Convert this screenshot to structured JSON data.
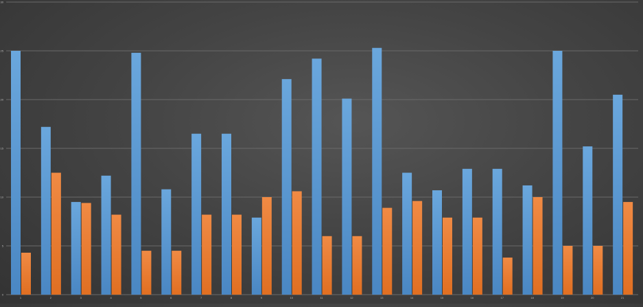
{
  "chart_data": {
    "type": "bar",
    "title": "",
    "xlabel": "",
    "ylabel": "",
    "ylim": [
      0,
      30
    ],
    "yticks": [
      0,
      5,
      10,
      15,
      20,
      25,
      30
    ],
    "grid": true,
    "legend": "none",
    "categories": [
      "1",
      "2",
      "3",
      "4",
      "5",
      "6",
      "7",
      "8",
      "9",
      "10",
      "11",
      "12",
      "13",
      "14",
      "15",
      "16",
      "17",
      "18",
      "19",
      "20",
      "21"
    ],
    "series": [
      {
        "color": "#5b9bd5",
        "values": [
          25,
          17.2,
          9.5,
          12.2,
          24.8,
          10.8,
          16.5,
          16.5,
          7.9,
          22.1,
          24.2,
          20.1,
          25.3,
          12.5,
          10.7,
          12.9,
          12.9,
          11.2,
          25,
          15.2,
          20.5
        ]
      },
      {
        "color": "#ed7d31",
        "values": [
          4.3,
          12.5,
          9.4,
          8.2,
          4.5,
          4.5,
          8.2,
          8.2,
          10,
          10.6,
          6,
          6,
          8.9,
          9.6,
          7.9,
          7.9,
          3.8,
          10,
          5,
          5,
          9.5
        ]
      }
    ],
    "colors": {
      "grid": "#6a6a6a",
      "tick_label": "#bfbfbf"
    }
  }
}
